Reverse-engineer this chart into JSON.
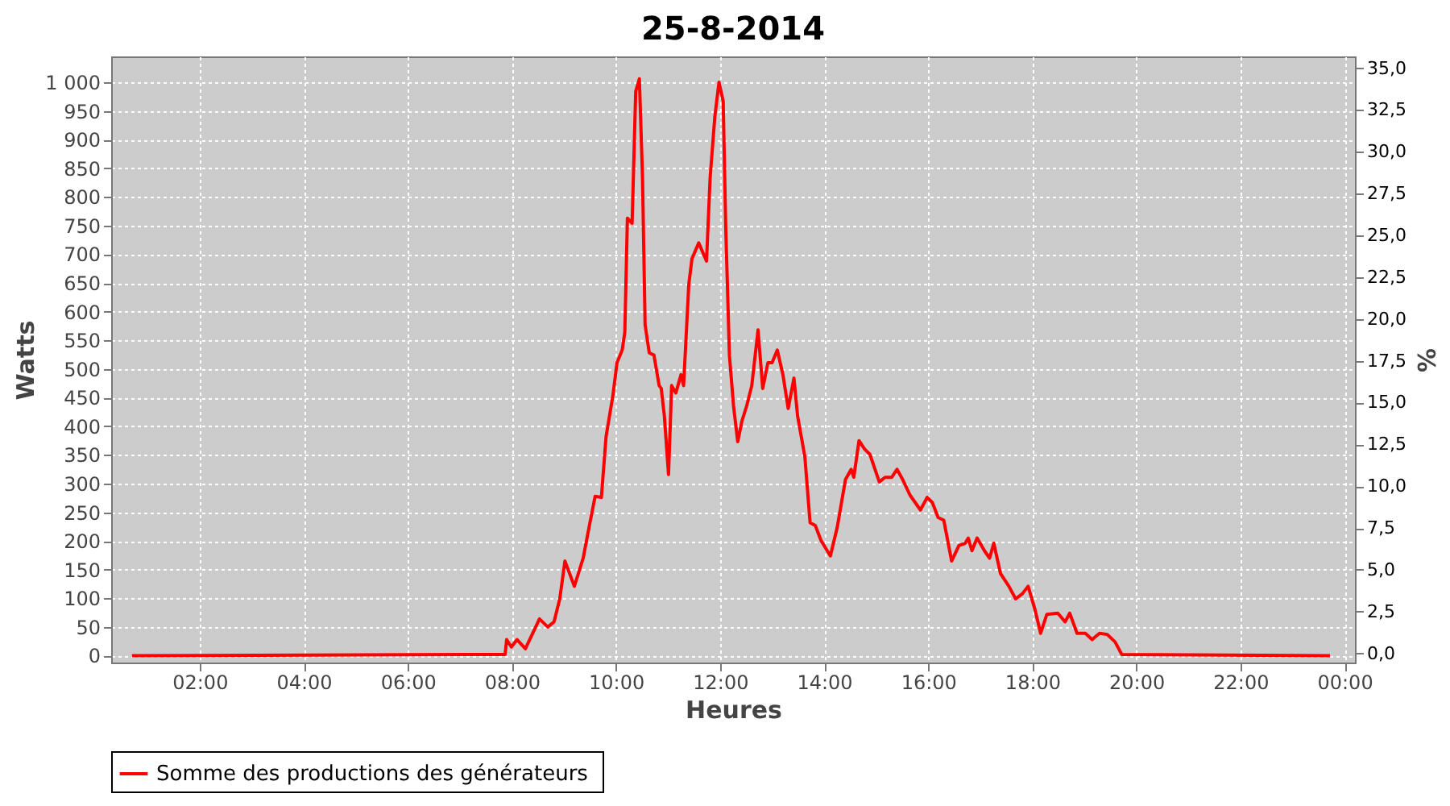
{
  "chart_data": {
    "type": "line",
    "title": "25-8-2014",
    "xlabel": "Heures",
    "ylabel": "Watts",
    "y2label": "%",
    "x": [
      0.7,
      7.2,
      7.87,
      7.9,
      7.99,
      8.1,
      8.26,
      8.39,
      8.53,
      8.69,
      8.81,
      8.92,
      9.02,
      9.2,
      9.37,
      9.49,
      9.6,
      9.72,
      9.81,
      9.94,
      10.02,
      10.12,
      10.17,
      10.22,
      10.31,
      10.38,
      10.45,
      10.51,
      10.56,
      10.64,
      10.73,
      10.83,
      10.87,
      10.93,
      11.01,
      11.07,
      11.15,
      11.25,
      11.3,
      11.4,
      11.46,
      11.59,
      11.66,
      11.74,
      11.81,
      11.9,
      11.98,
      12.06,
      12.11,
      12.18,
      12.26,
      12.34,
      12.42,
      12.51,
      12.61,
      12.73,
      12.82,
      12.92,
      13.0,
      13.1,
      13.21,
      13.31,
      13.42,
      13.49,
      13.63,
      13.73,
      13.83,
      13.94,
      14.12,
      14.25,
      14.41,
      14.52,
      14.57,
      14.67,
      14.78,
      14.88,
      15.06,
      15.17,
      15.3,
      15.4,
      15.51,
      15.65,
      15.85,
      15.98,
      16.08,
      16.19,
      16.3,
      16.45,
      16.59,
      16.71,
      16.77,
      16.84,
      16.94,
      17.08,
      17.18,
      17.26,
      17.39,
      17.55,
      17.68,
      17.81,
      17.92,
      18.05,
      18.16,
      18.28,
      18.49,
      18.63,
      18.72,
      18.86,
      19.02,
      19.15,
      19.29,
      19.44,
      19.59,
      19.72,
      23.72
    ],
    "series": [
      {
        "name": "Somme des productions des  générateurs",
        "color": "#ff0000",
        "values": [
          0,
          2,
          2,
          28,
          15,
          28,
          12,
          37,
          64,
          50,
          59,
          99,
          165,
          121,
          170,
          227,
          278,
          276,
          382,
          453,
          511,
          533,
          564,
          763,
          754,
          984,
          1006,
          834,
          577,
          528,
          524,
          471,
          466,
          418,
          316,
          471,
          458,
          490,
          471,
          648,
          692,
          720,
          705,
          688,
          834,
          940,
          1000,
          967,
          745,
          524,
          435,
          373,
          409,
          435,
          471,
          568,
          466,
          511,
          511,
          533,
          489,
          431,
          484,
          418,
          347,
          232,
          227,
          201,
          174,
          223,
          307,
          325,
          311,
          375,
          360,
          351,
          303,
          311,
          311,
          325,
          307,
          280,
          254,
          276,
          267,
          241,
          236,
          165,
          192,
          196,
          205,
          183,
          205,
          183,
          170,
          196,
          143,
          121,
          99,
          108,
          121,
          81,
          39,
          72,
          74,
          59,
          74,
          39,
          39,
          28,
          39,
          37,
          24,
          2,
          0
        ]
      }
    ],
    "xlim": [
      0.3,
      24.2
    ],
    "xticks": [
      {
        "value": 2,
        "label": "02:00"
      },
      {
        "value": 4,
        "label": "04:00"
      },
      {
        "value": 6,
        "label": "06:00"
      },
      {
        "value": 8,
        "label": "08:00"
      },
      {
        "value": 10,
        "label": "10:00"
      },
      {
        "value": 12,
        "label": "12:00"
      },
      {
        "value": 14,
        "label": "14:00"
      },
      {
        "value": 16,
        "label": "16:00"
      },
      {
        "value": 18,
        "label": "18:00"
      },
      {
        "value": 20,
        "label": "20:00"
      },
      {
        "value": 22,
        "label": "22:00"
      },
      {
        "value": 24,
        "label": "00:00"
      }
    ],
    "ylim": [
      -12,
      1045
    ],
    "yticks": [
      0,
      50,
      100,
      150,
      200,
      250,
      300,
      350,
      400,
      450,
      500,
      550,
      600,
      650,
      700,
      750,
      800,
      850,
      900,
      950,
      {
        "value": 1000,
        "label": "1 000"
      }
    ],
    "y2lim": [
      -0.55,
      35.7
    ],
    "y2ticks": [
      {
        "value": 0,
        "label": "0,0"
      },
      {
        "value": 2.5,
        "label": "2,5"
      },
      {
        "value": 5,
        "label": "5,0"
      },
      {
        "value": 7.5,
        "label": "7,5"
      },
      {
        "value": 10,
        "label": "10,0"
      },
      {
        "value": 12.5,
        "label": "12,5"
      },
      {
        "value": 15,
        "label": "15,0"
      },
      {
        "value": 17.5,
        "label": "17,5"
      },
      {
        "value": 20,
        "label": "20,0"
      },
      {
        "value": 22.5,
        "label": "22,5"
      },
      {
        "value": 25,
        "label": "25,0"
      },
      {
        "value": 27.5,
        "label": "27,5"
      },
      {
        "value": 30,
        "label": "30,0"
      },
      {
        "value": 32.5,
        "label": "32,5"
      },
      {
        "value": 35,
        "label": "35,0"
      }
    ],
    "grid": true,
    "legend": "bottom",
    "line_style": "solid"
  }
}
